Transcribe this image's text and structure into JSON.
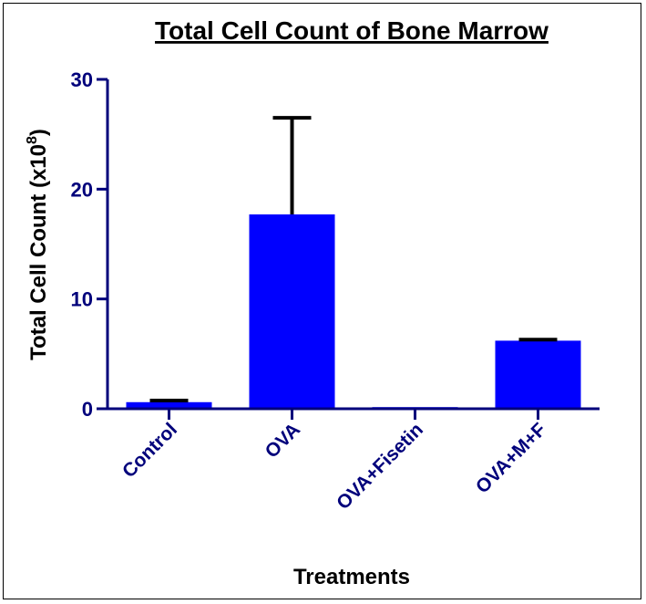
{
  "chart_data": {
    "type": "bar",
    "title": "Total Cell Count of Bone Marrow",
    "xlabel": "Treatments",
    "ylabel": "Total Cell  Count (x10",
    "ylabel_superscript": "8",
    "ylabel_suffix": ")",
    "categories": [
      "Control",
      "OVA",
      "OVA+Fisetin",
      "OVA+M+F"
    ],
    "values": [
      0.6,
      17.7,
      0.15,
      6.2
    ],
    "error_upper": [
      0.15,
      8.8,
      0.0,
      0.1
    ],
    "ylim": [
      0,
      30
    ],
    "yticks": [
      0,
      10,
      20,
      30
    ],
    "grid": false,
    "bar_color": "#0000ff",
    "axis_color": "#00007b",
    "text_color": "#000000"
  }
}
